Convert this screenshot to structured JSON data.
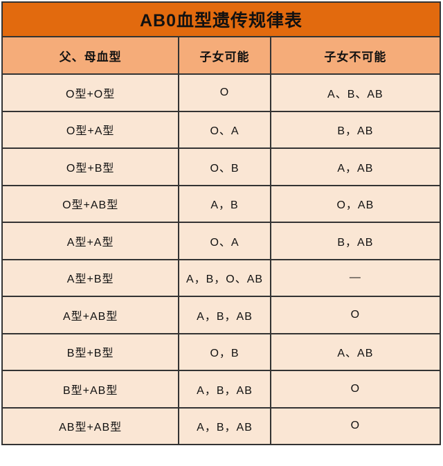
{
  "title": "AB0血型遗传规律表",
  "colors": {
    "title_bg": "#E26A0E",
    "header_bg": "#F5AC79",
    "row_bg": "#FAE6D4",
    "border": "#333333",
    "text": "#111111",
    "page_bg": "#FFFFFF"
  },
  "table": {
    "headers": [
      "父、母血型",
      "子女可能",
      "子女不可能"
    ],
    "rows": [
      [
        "O型+O型",
        "O",
        "A、B、AB"
      ],
      [
        "O型+A型",
        "O、A",
        "B，AB"
      ],
      [
        "O型+B型",
        "O、B",
        "A，AB"
      ],
      [
        "O型+AB型",
        "A，B",
        "O，AB"
      ],
      [
        "A型+A型",
        "O、A",
        "B，AB"
      ],
      [
        "A型+B型",
        "A，B，O、AB",
        "—"
      ],
      [
        "A型+AB型",
        "A，B，AB",
        "O"
      ],
      [
        "B型+B型",
        "O，B",
        "A、AB"
      ],
      [
        "B型+AB型",
        "A，B，AB",
        "O"
      ],
      [
        "AB型+AB型",
        "A，B，AB",
        "O"
      ]
    ]
  }
}
